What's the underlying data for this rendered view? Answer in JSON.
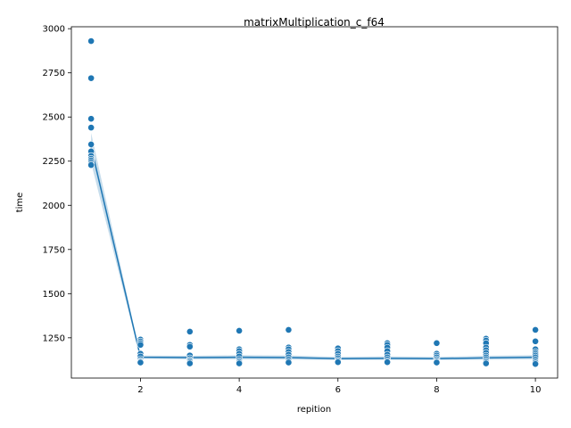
{
  "chart_data": {
    "type": "scatter",
    "title": "matrixMultiplication_c_f64",
    "xlabel": "repition",
    "ylabel": "time",
    "xlim": [
      0.6,
      10.45
    ],
    "ylim": [
      1022,
      3011
    ],
    "xticks": [
      2,
      4,
      6,
      8,
      10
    ],
    "yticks": [
      1250,
      1500,
      1750,
      2000,
      2250,
      2500,
      2750,
      3000
    ],
    "grid": false,
    "marker_color": "#1f77b4",
    "points": [
      {
        "x": 1,
        "y": 2930
      },
      {
        "x": 1,
        "y": 2720
      },
      {
        "x": 1,
        "y": 2490
      },
      {
        "x": 1,
        "y": 2440
      },
      {
        "x": 1,
        "y": 2345
      },
      {
        "x": 1,
        "y": 2305
      },
      {
        "x": 1,
        "y": 2280
      },
      {
        "x": 1,
        "y": 2265
      },
      {
        "x": 1,
        "y": 2255
      },
      {
        "x": 1,
        "y": 2245
      },
      {
        "x": 1,
        "y": 2235
      },
      {
        "x": 1,
        "y": 2228
      },
      {
        "x": 2,
        "y": 1240
      },
      {
        "x": 2,
        "y": 1230
      },
      {
        "x": 2,
        "y": 1220
      },
      {
        "x": 2,
        "y": 1210
      },
      {
        "x": 2,
        "y": 1160
      },
      {
        "x": 2,
        "y": 1145
      },
      {
        "x": 2,
        "y": 1130
      },
      {
        "x": 2,
        "y": 1120
      },
      {
        "x": 2,
        "y": 1115
      },
      {
        "x": 2,
        "y": 1110
      },
      {
        "x": 3,
        "y": 1285
      },
      {
        "x": 3,
        "y": 1210
      },
      {
        "x": 3,
        "y": 1200
      },
      {
        "x": 3,
        "y": 1150
      },
      {
        "x": 3,
        "y": 1135
      },
      {
        "x": 3,
        "y": 1125
      },
      {
        "x": 3,
        "y": 1120
      },
      {
        "x": 3,
        "y": 1112
      },
      {
        "x": 3,
        "y": 1105
      },
      {
        "x": 4,
        "y": 1290
      },
      {
        "x": 4,
        "y": 1185
      },
      {
        "x": 4,
        "y": 1175
      },
      {
        "x": 4,
        "y": 1160
      },
      {
        "x": 4,
        "y": 1145
      },
      {
        "x": 4,
        "y": 1130
      },
      {
        "x": 4,
        "y": 1120
      },
      {
        "x": 4,
        "y": 1112
      },
      {
        "x": 4,
        "y": 1105
      },
      {
        "x": 5,
        "y": 1295
      },
      {
        "x": 5,
        "y": 1195
      },
      {
        "x": 5,
        "y": 1185
      },
      {
        "x": 5,
        "y": 1170
      },
      {
        "x": 5,
        "y": 1155
      },
      {
        "x": 5,
        "y": 1140
      },
      {
        "x": 5,
        "y": 1128
      },
      {
        "x": 5,
        "y": 1118
      },
      {
        "x": 5,
        "y": 1110
      },
      {
        "x": 6,
        "y": 1190
      },
      {
        "x": 6,
        "y": 1175
      },
      {
        "x": 6,
        "y": 1160
      },
      {
        "x": 6,
        "y": 1145
      },
      {
        "x": 6,
        "y": 1135
      },
      {
        "x": 6,
        "y": 1125
      },
      {
        "x": 6,
        "y": 1118
      },
      {
        "x": 6,
        "y": 1112
      },
      {
        "x": 7,
        "y": 1220
      },
      {
        "x": 7,
        "y": 1210
      },
      {
        "x": 7,
        "y": 1195
      },
      {
        "x": 7,
        "y": 1175
      },
      {
        "x": 7,
        "y": 1155
      },
      {
        "x": 7,
        "y": 1140
      },
      {
        "x": 7,
        "y": 1128
      },
      {
        "x": 7,
        "y": 1118
      },
      {
        "x": 7,
        "y": 1112
      },
      {
        "x": 8,
        "y": 1220
      },
      {
        "x": 8,
        "y": 1160
      },
      {
        "x": 8,
        "y": 1150
      },
      {
        "x": 8,
        "y": 1140
      },
      {
        "x": 8,
        "y": 1130
      },
      {
        "x": 8,
        "y": 1122
      },
      {
        "x": 8,
        "y": 1115
      },
      {
        "x": 8,
        "y": 1110
      },
      {
        "x": 9,
        "y": 1245
      },
      {
        "x": 9,
        "y": 1235
      },
      {
        "x": 9,
        "y": 1220
      },
      {
        "x": 9,
        "y": 1195
      },
      {
        "x": 9,
        "y": 1180
      },
      {
        "x": 9,
        "y": 1165
      },
      {
        "x": 9,
        "y": 1150
      },
      {
        "x": 9,
        "y": 1140
      },
      {
        "x": 9,
        "y": 1130
      },
      {
        "x": 9,
        "y": 1120
      },
      {
        "x": 9,
        "y": 1112
      },
      {
        "x": 9,
        "y": 1105
      },
      {
        "x": 10,
        "y": 1295
      },
      {
        "x": 10,
        "y": 1230
      },
      {
        "x": 10,
        "y": 1185
      },
      {
        "x": 10,
        "y": 1170
      },
      {
        "x": 10,
        "y": 1160
      },
      {
        "x": 10,
        "y": 1150
      },
      {
        "x": 10,
        "y": 1140
      },
      {
        "x": 10,
        "y": 1128
      },
      {
        "x": 10,
        "y": 1118
      },
      {
        "x": 10,
        "y": 1110
      },
      {
        "x": 10,
        "y": 1102
      }
    ],
    "mean_line": {
      "x": [
        1,
        2,
        3,
        4,
        5,
        6,
        7,
        8,
        9,
        10
      ],
      "y": [
        2330,
        1140,
        1138,
        1140,
        1138,
        1132,
        1134,
        1132,
        1136,
        1140
      ]
    },
    "confidence_band": {
      "x": [
        1,
        2,
        3,
        4,
        5,
        6,
        7,
        8,
        9,
        10
      ],
      "lower": [
        2240,
        1132,
        1128,
        1128,
        1127,
        1124,
        1125,
        1124,
        1126,
        1128
      ],
      "upper": [
        2410,
        1150,
        1148,
        1152,
        1150,
        1142,
        1145,
        1142,
        1148,
        1152
      ]
    }
  }
}
